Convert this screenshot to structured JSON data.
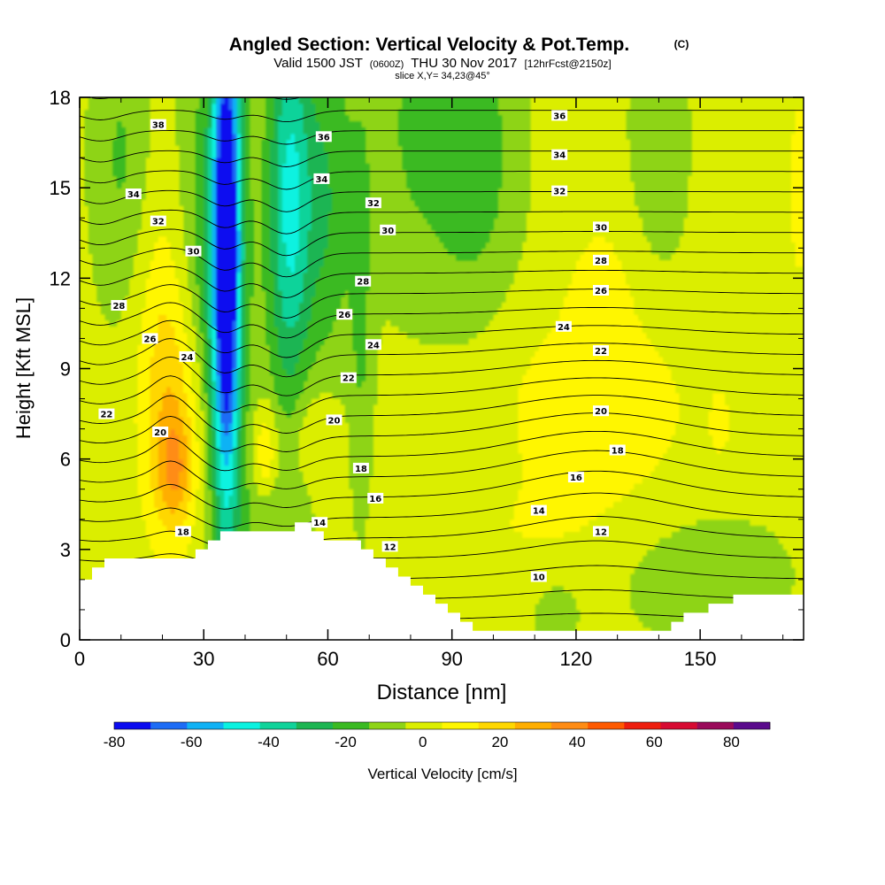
{
  "header": {
    "title": "Angled Section: Vertical Velocity & Pot.Temp.",
    "copyright": "(C)",
    "valid_main_a": "Valid 1500 JST",
    "valid_utc": "(0600Z)",
    "valid_main_b": "THU 30 Nov 2017",
    "forecast": "[12hrFcst@2150z]",
    "slice": "slice X,Y= 34,23@45°"
  },
  "colors": {
    "ramp": [
      "#0b0bf0",
      "#1d6cf5",
      "#10b2f5",
      "#0af2e0",
      "#10d39a",
      "#1db552",
      "#3aba22",
      "#8ed416",
      "#dbee00",
      "#fff600",
      "#ffd700",
      "#ffae00",
      "#ff8c14",
      "#ff5a00",
      "#ee1e0e",
      "#d70a32",
      "#9a0a5a",
      "#5a0a8c"
    ],
    "terrain": "#ffffff",
    "contour": "#000000"
  },
  "chart_data": {
    "type": "heatmap",
    "xlabel": "Distance [nm]",
    "ylabel": "Height [Kft MSL]",
    "xlim": [
      0,
      175
    ],
    "ylim": [
      0,
      18
    ],
    "xticks": [
      "0",
      "30",
      "60",
      "90",
      "120",
      "150"
    ],
    "yticks": [
      "0",
      "3",
      "6",
      "9",
      "12",
      "15",
      "18"
    ],
    "colorbar": {
      "label": "Vertical Velocity [cm/s]",
      "tick_labels": [
        "-80",
        "-60",
        "-40",
        "-20",
        "0",
        "20",
        "40",
        "60",
        "80"
      ],
      "range": [
        -80,
        90
      ],
      "step": 10
    },
    "vertical_velocity_features": [
      {
        "kind": "down",
        "x": 35,
        "y": 12,
        "peak": -80
      },
      {
        "kind": "down",
        "x": 51,
        "y": 13,
        "peak": -35
      },
      {
        "kind": "down",
        "x": 60,
        "y": 14,
        "peak": -25
      },
      {
        "kind": "up",
        "x": 23,
        "y": 6,
        "peak": 40
      },
      {
        "kind": "up",
        "x": 45,
        "y": 6,
        "peak": 30
      },
      {
        "kind": "up",
        "x": 125,
        "y": 7.5,
        "peak": 20
      }
    ],
    "theta_contours": {
      "levels": [
        10,
        12,
        14,
        16,
        18,
        20,
        22,
        24,
        26,
        28,
        30,
        32,
        34,
        36,
        38
      ],
      "labels": [
        {
          "text": "38",
          "x": 19,
          "y": 17.1
        },
        {
          "text": "34",
          "x": 13,
          "y": 14.8
        },
        {
          "text": "32",
          "x": 19,
          "y": 13.9
        },
        {
          "text": "30",
          "x": 27.5,
          "y": 12.9
        },
        {
          "text": "28",
          "x": 9.5,
          "y": 11.1
        },
        {
          "text": "26",
          "x": 17,
          "y": 10.0
        },
        {
          "text": "24",
          "x": 26,
          "y": 9.4
        },
        {
          "text": "22",
          "x": 6.5,
          "y": 7.5
        },
        {
          "text": "20",
          "x": 19.5,
          "y": 6.9
        },
        {
          "text": "18",
          "x": 25,
          "y": 3.6
        },
        {
          "text": "36",
          "x": 59,
          "y": 16.7
        },
        {
          "text": "34",
          "x": 58.5,
          "y": 15.3
        },
        {
          "text": "32",
          "x": 71,
          "y": 14.5
        },
        {
          "text": "30",
          "x": 74.5,
          "y": 13.6
        },
        {
          "text": "28",
          "x": 68.5,
          "y": 11.9
        },
        {
          "text": "26",
          "x": 64,
          "y": 10.8
        },
        {
          "text": "24",
          "x": 71,
          "y": 9.8
        },
        {
          "text": "22",
          "x": 65,
          "y": 8.7
        },
        {
          "text": "20",
          "x": 61.5,
          "y": 7.3
        },
        {
          "text": "18",
          "x": 68,
          "y": 5.7
        },
        {
          "text": "16",
          "x": 71.5,
          "y": 4.7
        },
        {
          "text": "14",
          "x": 58,
          "y": 3.9
        },
        {
          "text": "12",
          "x": 75,
          "y": 3.1
        },
        {
          "text": "36",
          "x": 116,
          "y": 17.4
        },
        {
          "text": "34",
          "x": 116,
          "y": 16.1
        },
        {
          "text": "32",
          "x": 116,
          "y": 14.9
        },
        {
          "text": "30",
          "x": 126,
          "y": 13.7
        },
        {
          "text": "28",
          "x": 126,
          "y": 12.6
        },
        {
          "text": "26",
          "x": 126,
          "y": 11.6
        },
        {
          "text": "24",
          "x": 117,
          "y": 10.4
        },
        {
          "text": "22",
          "x": 126,
          "y": 9.6
        },
        {
          "text": "20",
          "x": 126,
          "y": 7.6
        },
        {
          "text": "18",
          "x": 130,
          "y": 6.3
        },
        {
          "text": "16",
          "x": 120,
          "y": 5.4
        },
        {
          "text": "14",
          "x": 111,
          "y": 4.3
        },
        {
          "text": "12",
          "x": 126,
          "y": 3.6
        },
        {
          "text": "10",
          "x": 111,
          "y": 2.1
        }
      ]
    },
    "terrain_profile": [
      [
        0,
        2.0
      ],
      [
        3,
        2.0
      ],
      [
        3,
        2.4
      ],
      [
        6,
        2.4
      ],
      [
        6,
        2.7
      ],
      [
        28,
        2.7
      ],
      [
        28,
        3.0
      ],
      [
        31,
        3.0
      ],
      [
        31,
        3.3
      ],
      [
        34,
        3.3
      ],
      [
        34,
        3.6
      ],
      [
        52,
        3.6
      ],
      [
        52,
        3.9
      ],
      [
        56,
        3.9
      ],
      [
        56,
        3.6
      ],
      [
        59,
        3.6
      ],
      [
        59,
        3.3
      ],
      [
        68,
        3.3
      ],
      [
        68,
        3.0
      ],
      [
        71,
        3.0
      ],
      [
        71,
        2.7
      ],
      [
        74,
        2.7
      ],
      [
        74,
        2.4
      ],
      [
        77,
        2.4
      ],
      [
        77,
        2.1
      ],
      [
        80,
        2.1
      ],
      [
        80,
        1.8
      ],
      [
        83,
        1.8
      ],
      [
        83,
        1.5
      ],
      [
        86,
        1.5
      ],
      [
        86,
        1.2
      ],
      [
        89,
        1.2
      ],
      [
        89,
        0.9
      ],
      [
        92,
        0.9
      ],
      [
        92,
        0.6
      ],
      [
        95,
        0.6
      ],
      [
        95,
        0.3
      ],
      [
        143,
        0.3
      ],
      [
        143,
        0.6
      ],
      [
        146,
        0.6
      ],
      [
        146,
        0.9
      ],
      [
        152,
        0.9
      ],
      [
        152,
        1.2
      ],
      [
        158,
        1.2
      ],
      [
        158,
        1.5
      ],
      [
        175,
        1.5
      ]
    ]
  }
}
